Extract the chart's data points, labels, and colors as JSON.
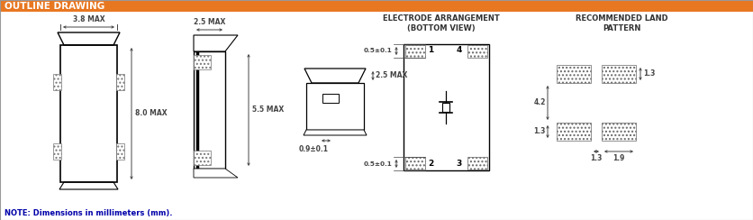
{
  "title": "OUTLINE DRAWING",
  "title_bg": "#E87722",
  "title_color": "#FFFFFF",
  "bg_color": "#FFFFFF",
  "line_color": "#000000",
  "dim_color": "#444444",
  "text_color": "#333333",
  "note": "NOTE: Dimensions in millimeters (mm).",
  "section1_label": "ELECTRODE ARRANGEMENT\n(BOTTOM VIEW)",
  "section2_label": "RECOMMENDED LAND\nPATTERN",
  "fig_width": 8.36,
  "fig_height": 2.44,
  "dpi": 100
}
